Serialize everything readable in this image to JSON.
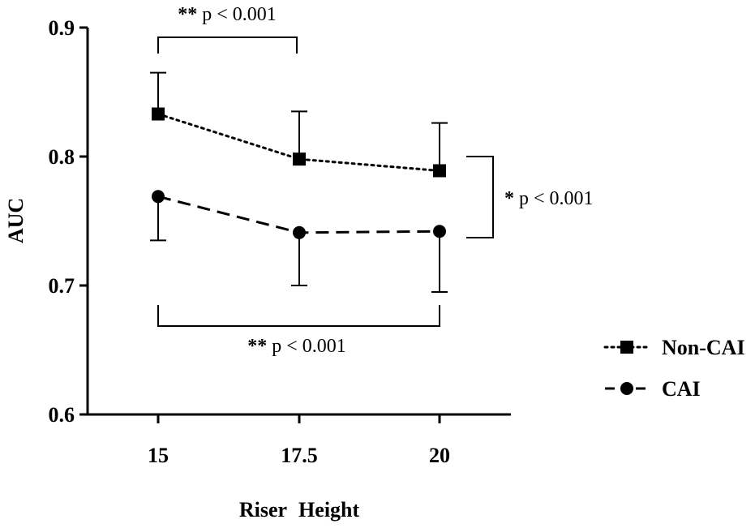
{
  "chart_data": {
    "type": "line",
    "xlabel": "Riser Height",
    "ylabel": "AUC",
    "categories": [
      "15",
      "17.5",
      "20"
    ],
    "x": [
      15,
      17.5,
      20
    ],
    "ylim": [
      0.6,
      0.9
    ],
    "yticks": [
      0.6,
      0.7,
      0.8,
      0.9
    ],
    "ytick_labels": [
      "0.6",
      "0.7",
      "0.8",
      "0.9"
    ],
    "grid": false,
    "legend_position": "right",
    "series": [
      {
        "name": "Non-CAI",
        "marker": "square",
        "line_style": "dotted",
        "values": [
          0.833,
          0.798,
          0.789
        ],
        "error_upper": [
          0.865,
          0.835,
          0.826
        ],
        "error_lower": [
          0.833,
          0.798,
          0.789
        ]
      },
      {
        "name": "CAI",
        "marker": "circle",
        "line_style": "dashed",
        "values": [
          0.769,
          0.741,
          0.742
        ],
        "error_upper": [
          0.769,
          0.741,
          0.742
        ],
        "error_lower": [
          0.735,
          0.7,
          0.695
        ]
      }
    ],
    "annotations": [
      {
        "id": "top",
        "stars": "**",
        "text": "p < 0.001",
        "between": [
          15,
          17.5
        ],
        "level": 0.93
      },
      {
        "id": "right",
        "stars": "*",
        "text": "p < 0.001",
        "between_series": [
          "Non-CAI",
          "CAI"
        ],
        "at": 20
      },
      {
        "id": "bottom",
        "stars": "**",
        "text": "p < 0.001",
        "between": [
          15,
          20
        ],
        "level": 0.675
      }
    ]
  }
}
